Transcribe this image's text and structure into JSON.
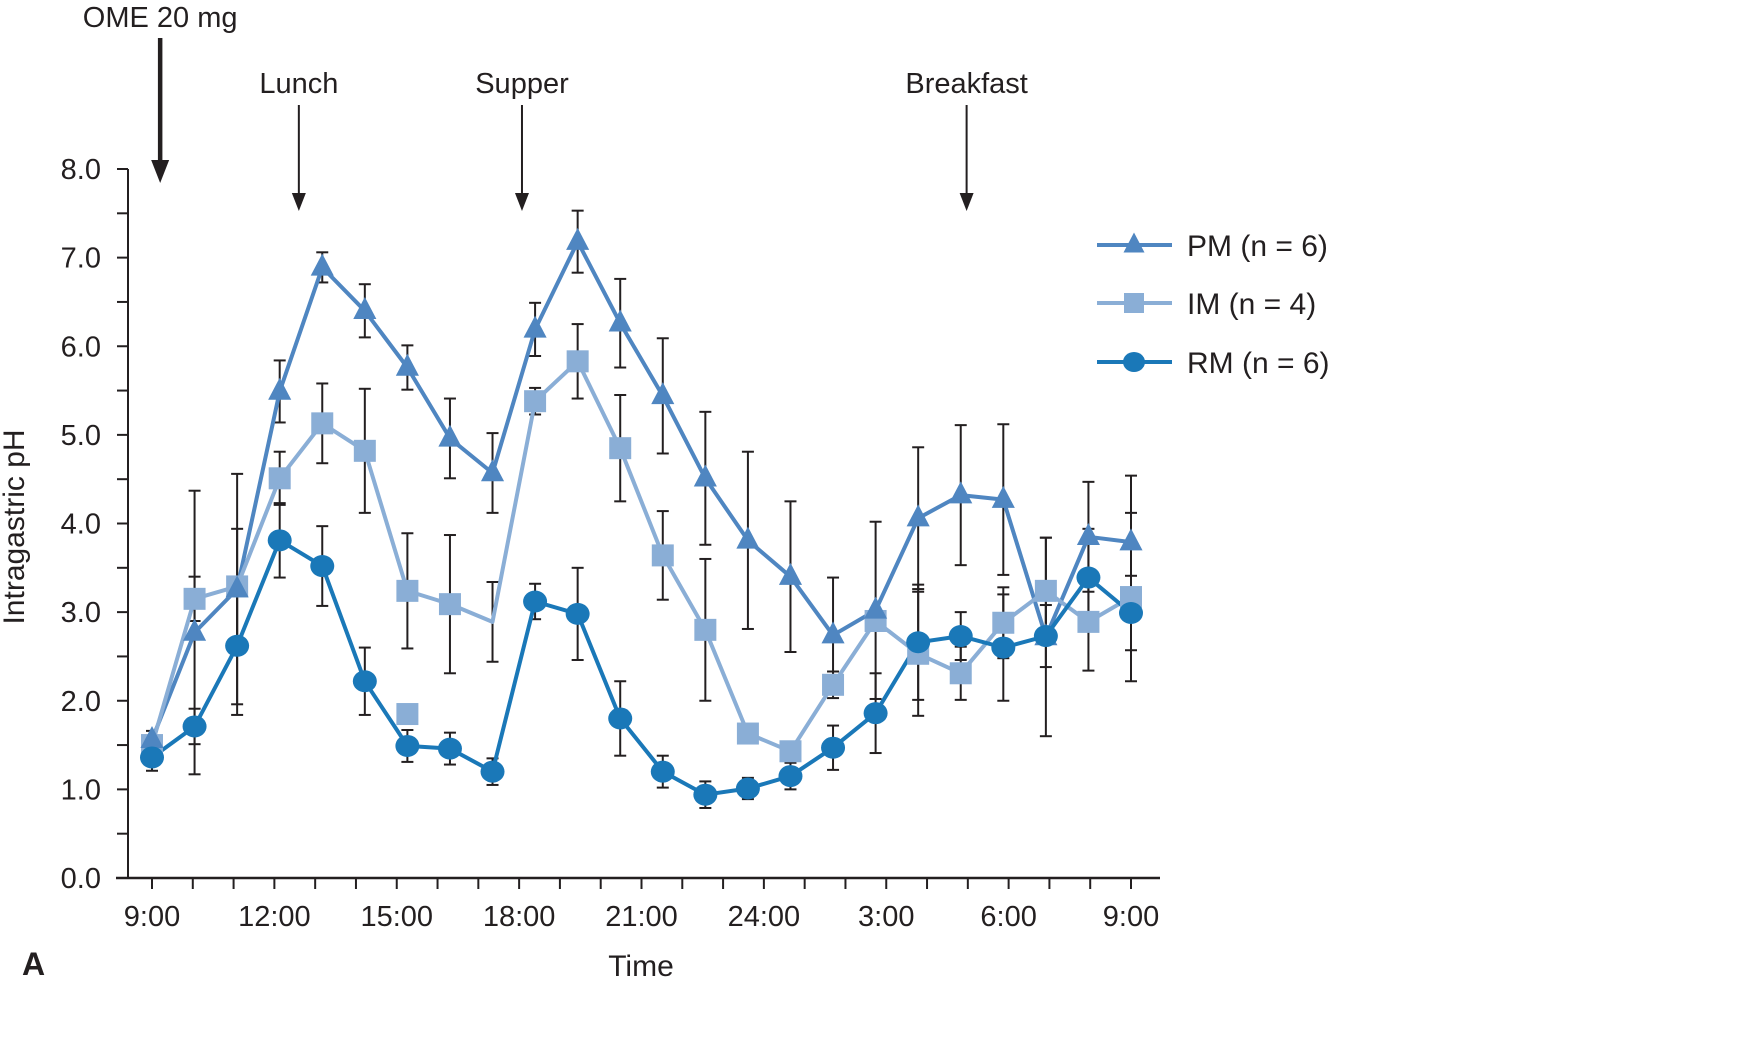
{
  "panel_label": "A",
  "chart_data": {
    "type": "line",
    "title": "",
    "xlabel": "Time",
    "ylabel": "Intragastric pH",
    "ylim": [
      0,
      8
    ],
    "yticks": [
      0,
      1,
      2,
      3,
      4,
      5,
      6,
      7,
      8
    ],
    "ytick_labels": [
      "0.0",
      "1.0",
      "2.0",
      "3.0",
      "4.0",
      "5.0",
      "6.0",
      "7.0",
      "8.0"
    ],
    "xlim_hours_from_start": [
      0,
      24
    ],
    "xtick_hours": [
      0,
      3,
      6,
      9,
      12,
      15,
      18,
      21,
      24
    ],
    "xtick_labels": [
      "9:00",
      "12:00",
      "15:00",
      "18:00",
      "21:00",
      "24:00",
      "3:00",
      "6:00",
      "9:00"
    ],
    "x_minor_ticks_every_hours": 1,
    "grid": false,
    "legend_position": "right",
    "x_unit": "hours after 9:00",
    "x_points_count": 24,
    "series": [
      {
        "name": "PM (n = 6)",
        "marker": "triangle",
        "color": "#4f86c1",
        "values": [
          1.56,
          2.77,
          3.26,
          5.49,
          6.89,
          6.4,
          5.76,
          4.96,
          4.57,
          6.19,
          7.18,
          6.26,
          5.44,
          4.51,
          3.81,
          3.4,
          2.74,
          3.02,
          4.06,
          4.32,
          4.27,
          2.72,
          3.85,
          3.79
        ],
        "errors": [
          0.1,
          1.6,
          1.3,
          0.35,
          0.17,
          0.3,
          0.25,
          0.45,
          0.45,
          0.3,
          0.35,
          0.5,
          0.65,
          0.75,
          1.0,
          0.85,
          0.65,
          1.0,
          0.8,
          0.79,
          0.85,
          1.12,
          0.62,
          0.75
        ]
      },
      {
        "name": "IM (n = 4)",
        "marker": "square",
        "color": "#8aaed6",
        "values": [
          1.5,
          3.15,
          3.29,
          4.51,
          5.13,
          4.82,
          3.24,
          3.09,
          2.89,
          5.38,
          5.83,
          4.85,
          3.64,
          2.8,
          1.63,
          1.43,
          2.18,
          2.9,
          2.53,
          2.31,
          2.88,
          3.24,
          2.89,
          3.17
        ],
        "markers_hidden_at": [
          8
        ],
        "errors": [
          0.1,
          0.25,
          0.65,
          0.3,
          0.45,
          0.7,
          0.65,
          0.78,
          0.45,
          0.15,
          0.42,
          0.6,
          0.5,
          0.8,
          0.0,
          0.0,
          0.15,
          0.0,
          0.7,
          0.3,
          0.4,
          0.6,
          0.55,
          0.95
        ],
        "extra_markers": [
          {
            "index": 6,
            "value": 1.85
          }
        ]
      },
      {
        "name": "RM (n = 6)",
        "marker": "circle",
        "color": "#1a78b8",
        "values": [
          1.36,
          1.71,
          2.62,
          3.81,
          3.52,
          2.22,
          1.49,
          1.46,
          1.2,
          3.12,
          2.98,
          1.8,
          1.2,
          0.94,
          1.01,
          1.15,
          1.47,
          1.86,
          2.66,
          2.73,
          2.6,
          2.73,
          3.39,
          2.99
        ],
        "errors": [
          0.15,
          0.2,
          0.78,
          0.42,
          0.45,
          0.38,
          0.18,
          0.18,
          0.15,
          0.2,
          0.52,
          0.42,
          0.18,
          0.15,
          0.12,
          0.15,
          0.25,
          0.45,
          0.65,
          0.27,
          0.6,
          0.35,
          0.55,
          0.42
        ]
      }
    ],
    "annotations": [
      {
        "label": "OME 20 mg",
        "hour": 0.2,
        "bold_arrow": true
      },
      {
        "label": "Lunch",
        "hour": 3.6,
        "bold_arrow": false
      },
      {
        "label": "Supper",
        "hour": 9.07,
        "bold_arrow": false
      },
      {
        "label": "Breakfast",
        "hour": 19.97,
        "bold_arrow": false
      }
    ]
  }
}
